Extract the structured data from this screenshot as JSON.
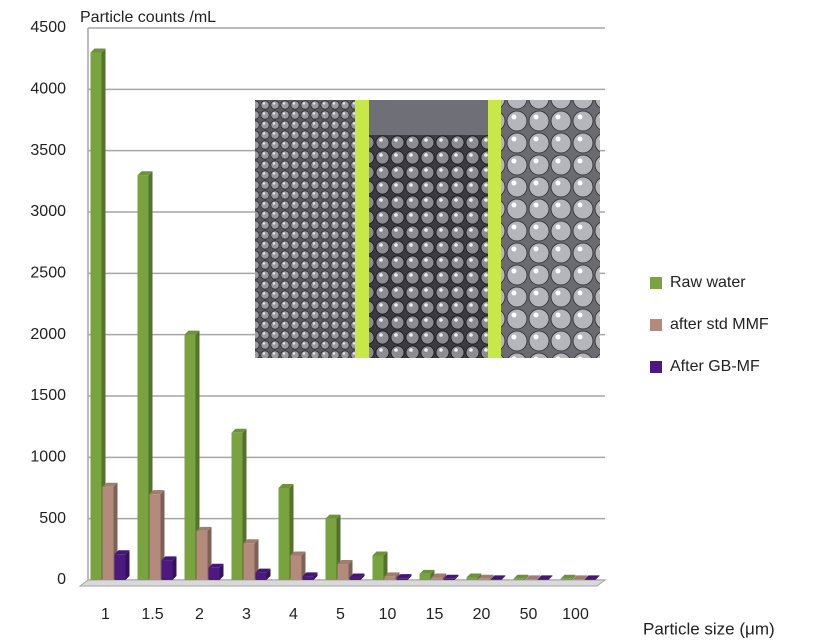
{
  "chart_data": {
    "type": "bar",
    "y_axis_label": "Particle counts /mL",
    "x_axis_label": "Particle size (μm)",
    "categories": [
      "1",
      "1.5",
      "2",
      "3",
      "4",
      "5",
      "10",
      "15",
      "20",
      "50",
      "100"
    ],
    "series": [
      {
        "name": "Raw water",
        "color": "#78a33f",
        "values": [
          4300,
          3300,
          2000,
          1200,
          750,
          500,
          200,
          50,
          20,
          10,
          10
        ]
      },
      {
        "name": "after std MMF",
        "color": "#b38a7b",
        "values": [
          760,
          700,
          400,
          300,
          200,
          130,
          30,
          20,
          10,
          5,
          5
        ]
      },
      {
        "name": "After GB-MF",
        "color": "#4d1882",
        "values": [
          210,
          160,
          100,
          60,
          30,
          20,
          15,
          10,
          5,
          5,
          5
        ]
      }
    ],
    "ylim": [
      0,
      4500
    ],
    "yticks": [
      0,
      500,
      1000,
      1500,
      2000,
      2500,
      3000,
      3500,
      4000,
      4500
    ],
    "grid": true
  }
}
